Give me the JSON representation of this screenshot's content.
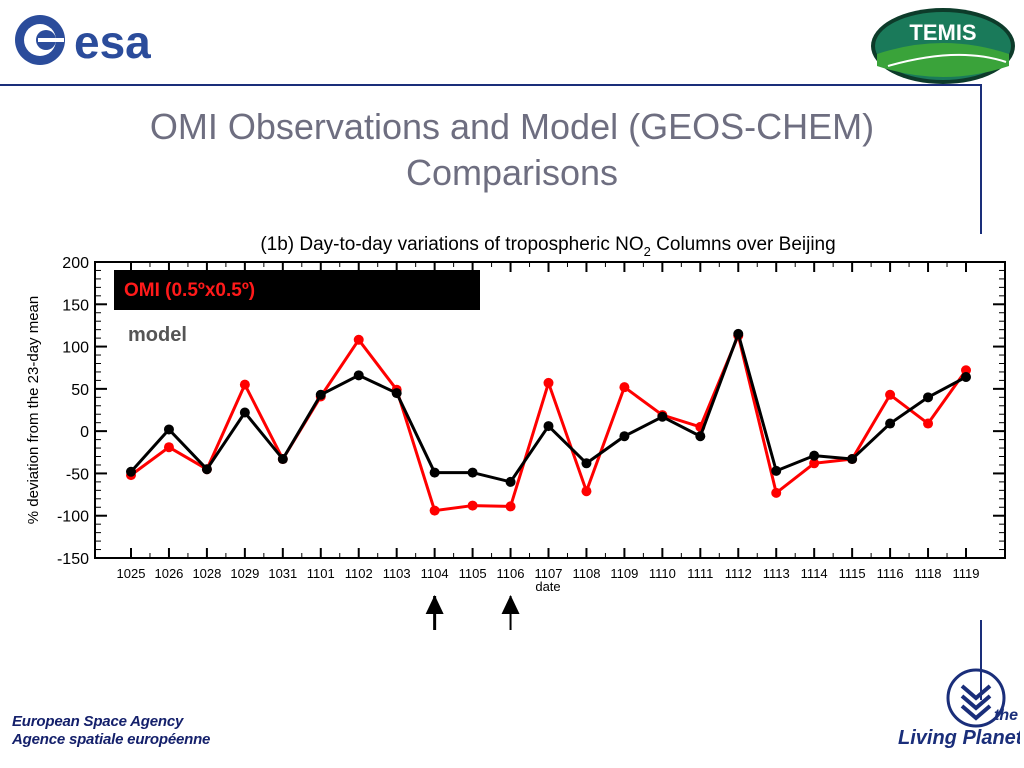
{
  "header": {
    "esa_logo_text": "esa",
    "temis_logo_text": "TEMIS"
  },
  "slide": {
    "title_line1": "OMI Observations and Model (GEOS-CHEM)",
    "title_line2": "Comparisons"
  },
  "footer": {
    "agency_en": "European Space Agency",
    "agency_fr": "Agence spatiale européenne",
    "living_planet_the": "the",
    "living_planet_text": "Living Planet"
  },
  "legend": {
    "omi_label": "OMI (0.5ºx0.5º)",
    "model_label": "model"
  },
  "colors": {
    "omi": "#ff0000",
    "model": "#000000",
    "title": "#6e6e80",
    "brand": "#1a2e7a"
  },
  "chart_data": {
    "type": "line",
    "title": "(1b) Day-to-day variations of tropospheric NO",
    "title_sub": "2",
    "title_rest": " Columns over Beijing",
    "xlabel": "date",
    "ylabel": "% deviation from the 23-day mean",
    "ylim": [
      -150,
      200
    ],
    "yticks": [
      200,
      150,
      100,
      50,
      0,
      -50,
      -100,
      -150
    ],
    "categories": [
      "1025",
      "1026",
      "1028",
      "1029",
      "1031",
      "1101",
      "1102",
      "1103",
      "1104",
      "1105",
      "1106",
      "1107",
      "1108",
      "1109",
      "1110",
      "1111",
      "1112",
      "1113",
      "1114",
      "1115",
      "1116",
      "1118",
      "1119"
    ],
    "series": [
      {
        "name": "OMI (0.5ºx0.5º)",
        "color": "#ff0000",
        "values": [
          -52,
          -19,
          -45,
          55,
          -33,
          41,
          108,
          49,
          -94,
          -88,
          -89,
          57,
          -71,
          52,
          19,
          5,
          113,
          -73,
          -38,
          -33,
          43,
          9,
          72
        ]
      },
      {
        "name": "model",
        "color": "#000000",
        "values": [
          -48,
          2,
          -45,
          22,
          -33,
          43,
          66,
          45,
          -49,
          -49,
          -60,
          6,
          -38,
          -6,
          17,
          -6,
          115,
          -47,
          -29,
          -33,
          9,
          40,
          64
        ]
      }
    ],
    "annotations": [
      {
        "type": "arrow",
        "category": "1104"
      },
      {
        "type": "arrow",
        "category": "1106"
      }
    ]
  }
}
